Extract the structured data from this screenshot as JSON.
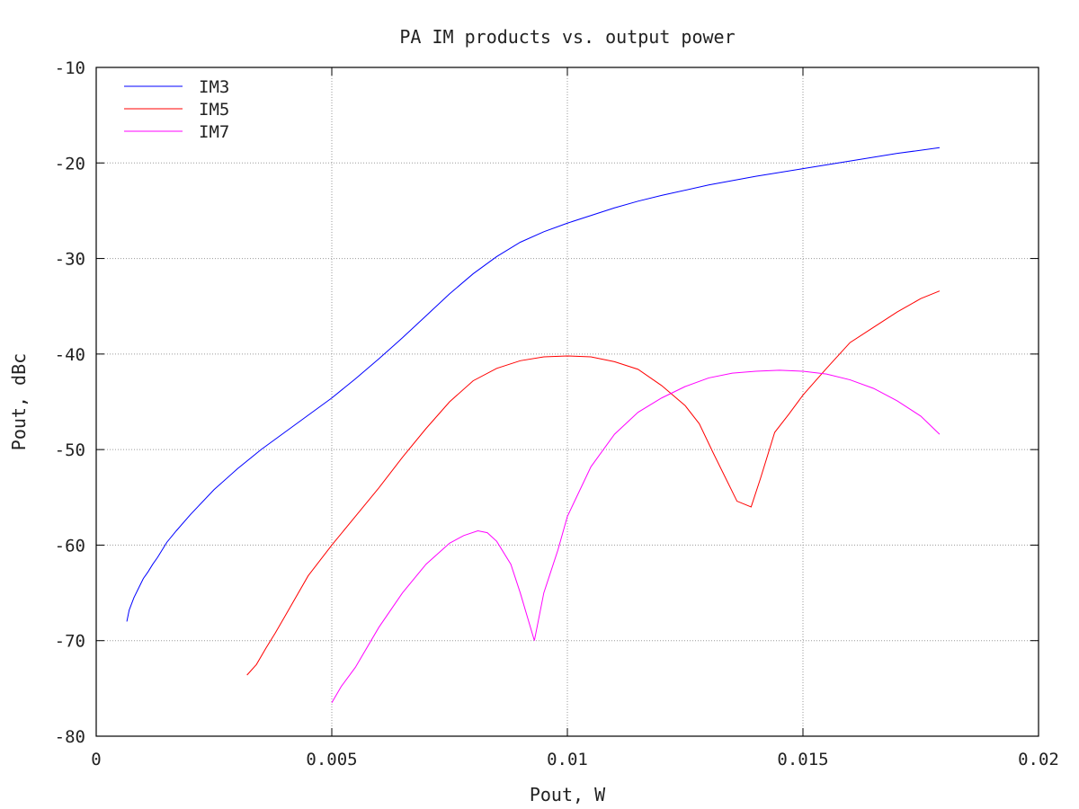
{
  "chart_data": {
    "type": "line",
    "title": "PA IM products vs. output power",
    "xlabel": "Pout, W",
    "ylabel": "Pout, dBc",
    "xlim": [
      0,
      0.02
    ],
    "ylim": [
      -80,
      -10
    ],
    "x_ticks": [
      0,
      0.005,
      0.01,
      0.015,
      0.02
    ],
    "x_tick_labels": [
      "0",
      "0.005",
      "0.01",
      "0.015",
      "0.02"
    ],
    "y_ticks": [
      -80,
      -70,
      -60,
      -50,
      -40,
      -30,
      -20,
      -10
    ],
    "y_tick_labels": [
      "-80",
      "-70",
      "-60",
      "-50",
      "-40",
      "-30",
      "-20",
      "-10"
    ],
    "grid": true,
    "legend_position": "top-left",
    "series": [
      {
        "name": "IM3",
        "color": "#0000ff",
        "x": [
          0.00065,
          0.0007,
          0.0008,
          0.0009,
          0.001,
          0.0011,
          0.0012,
          0.0013,
          0.0015,
          0.0017,
          0.002,
          0.0025,
          0.003,
          0.0035,
          0.004,
          0.0045,
          0.005,
          0.0055,
          0.006,
          0.0065,
          0.007,
          0.0075,
          0.008,
          0.0085,
          0.009,
          0.0095,
          0.01,
          0.0105,
          0.011,
          0.0115,
          0.012,
          0.013,
          0.014,
          0.015,
          0.016,
          0.017,
          0.0179
        ],
        "y": [
          -68.0,
          -66.8,
          -65.5,
          -64.5,
          -63.5,
          -62.8,
          -62.0,
          -61.3,
          -59.7,
          -58.5,
          -56.8,
          -54.2,
          -52.0,
          -50.0,
          -48.2,
          -46.4,
          -44.6,
          -42.6,
          -40.5,
          -38.3,
          -36.0,
          -33.7,
          -31.6,
          -29.8,
          -28.3,
          -27.2,
          -26.3,
          -25.5,
          -24.7,
          -24.0,
          -23.4,
          -22.3,
          -21.4,
          -20.6,
          -19.8,
          -19.0,
          -18.4
        ]
      },
      {
        "name": "IM5",
        "color": "#ff0000",
        "x": [
          0.0032,
          0.0034,
          0.0036,
          0.0038,
          0.004,
          0.0045,
          0.005,
          0.0055,
          0.006,
          0.0065,
          0.007,
          0.0075,
          0.008,
          0.0085,
          0.009,
          0.0095,
          0.01,
          0.0105,
          0.011,
          0.0115,
          0.012,
          0.0125,
          0.0128,
          0.0131,
          0.0133,
          0.0136,
          0.0139,
          0.0141,
          0.0144,
          0.0147,
          0.015,
          0.0155,
          0.016,
          0.0165,
          0.017,
          0.0175,
          0.0179
        ],
        "y": [
          -73.6,
          -72.5,
          -70.8,
          -69.2,
          -67.5,
          -63.2,
          -60.0,
          -57.0,
          -54.0,
          -50.8,
          -47.8,
          -45.0,
          -42.8,
          -41.5,
          -40.7,
          -40.3,
          -40.2,
          -40.3,
          -40.8,
          -41.6,
          -43.3,
          -45.4,
          -47.3,
          -50.4,
          -52.4,
          -55.4,
          -56.0,
          -53.0,
          -48.2,
          -46.3,
          -44.3,
          -41.5,
          -38.8,
          -37.2,
          -35.6,
          -34.2,
          -33.4
        ]
      },
      {
        "name": "IM7",
        "color": "#ff00ff",
        "x": [
          0.005,
          0.0052,
          0.0055,
          0.006,
          0.0065,
          0.007,
          0.0075,
          0.0078,
          0.0081,
          0.0083,
          0.0085,
          0.0088,
          0.009,
          0.0093,
          0.0095,
          0.0098,
          0.01,
          0.0105,
          0.011,
          0.0115,
          0.012,
          0.0125,
          0.013,
          0.0135,
          0.014,
          0.0145,
          0.015,
          0.0155,
          0.016,
          0.0165,
          0.017,
          0.0175,
          0.0179
        ],
        "y": [
          -76.5,
          -74.8,
          -72.8,
          -68.6,
          -65.0,
          -62.0,
          -59.8,
          -59.0,
          -58.5,
          -58.7,
          -59.6,
          -62.0,
          -65.0,
          -70.0,
          -65.0,
          -60.5,
          -57.0,
          -51.8,
          -48.4,
          -46.1,
          -44.6,
          -43.4,
          -42.5,
          -42.0,
          -41.8,
          -41.7,
          -41.8,
          -42.1,
          -42.7,
          -43.6,
          -44.9,
          -46.5,
          -48.4
        ]
      }
    ]
  }
}
